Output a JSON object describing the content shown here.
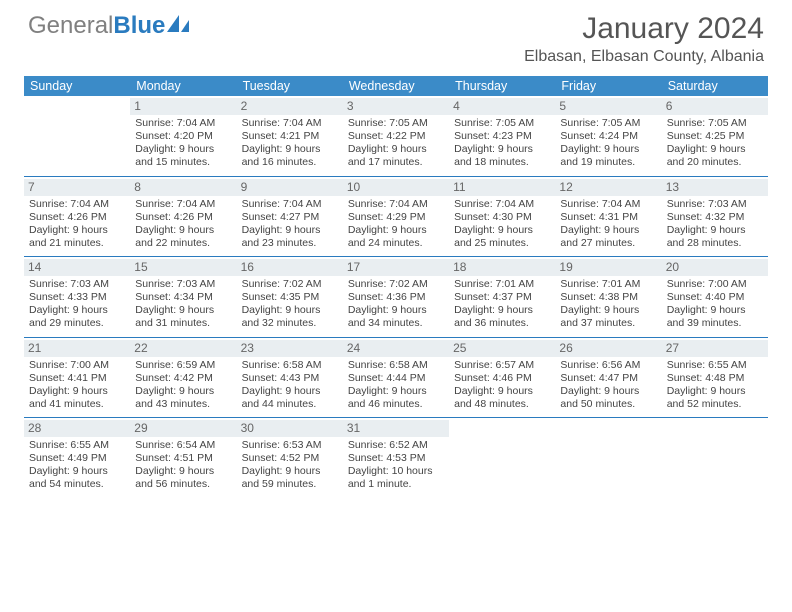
{
  "brand": {
    "part1": "General",
    "part2": "Blue"
  },
  "title": "January 2024",
  "location": "Elbasan, Elbasan County, Albania",
  "colors": {
    "header_bg": "#3b8bc8",
    "rule": "#2a7bbf",
    "daynum_bg": "#e9eef1"
  },
  "day_names": [
    "Sunday",
    "Monday",
    "Tuesday",
    "Wednesday",
    "Thursday",
    "Friday",
    "Saturday"
  ],
  "first_weekday": 1,
  "days": [
    {
      "n": 1,
      "sr": "7:04 AM",
      "ss": "4:20 PM",
      "dl": "9 hours and 15 minutes."
    },
    {
      "n": 2,
      "sr": "7:04 AM",
      "ss": "4:21 PM",
      "dl": "9 hours and 16 minutes."
    },
    {
      "n": 3,
      "sr": "7:05 AM",
      "ss": "4:22 PM",
      "dl": "9 hours and 17 minutes."
    },
    {
      "n": 4,
      "sr": "7:05 AM",
      "ss": "4:23 PM",
      "dl": "9 hours and 18 minutes."
    },
    {
      "n": 5,
      "sr": "7:05 AM",
      "ss": "4:24 PM",
      "dl": "9 hours and 19 minutes."
    },
    {
      "n": 6,
      "sr": "7:05 AM",
      "ss": "4:25 PM",
      "dl": "9 hours and 20 minutes."
    },
    {
      "n": 7,
      "sr": "7:04 AM",
      "ss": "4:26 PM",
      "dl": "9 hours and 21 minutes."
    },
    {
      "n": 8,
      "sr": "7:04 AM",
      "ss": "4:26 PM",
      "dl": "9 hours and 22 minutes."
    },
    {
      "n": 9,
      "sr": "7:04 AM",
      "ss": "4:27 PM",
      "dl": "9 hours and 23 minutes."
    },
    {
      "n": 10,
      "sr": "7:04 AM",
      "ss": "4:29 PM",
      "dl": "9 hours and 24 minutes."
    },
    {
      "n": 11,
      "sr": "7:04 AM",
      "ss": "4:30 PM",
      "dl": "9 hours and 25 minutes."
    },
    {
      "n": 12,
      "sr": "7:04 AM",
      "ss": "4:31 PM",
      "dl": "9 hours and 27 minutes."
    },
    {
      "n": 13,
      "sr": "7:03 AM",
      "ss": "4:32 PM",
      "dl": "9 hours and 28 minutes."
    },
    {
      "n": 14,
      "sr": "7:03 AM",
      "ss": "4:33 PM",
      "dl": "9 hours and 29 minutes."
    },
    {
      "n": 15,
      "sr": "7:03 AM",
      "ss": "4:34 PM",
      "dl": "9 hours and 31 minutes."
    },
    {
      "n": 16,
      "sr": "7:02 AM",
      "ss": "4:35 PM",
      "dl": "9 hours and 32 minutes."
    },
    {
      "n": 17,
      "sr": "7:02 AM",
      "ss": "4:36 PM",
      "dl": "9 hours and 34 minutes."
    },
    {
      "n": 18,
      "sr": "7:01 AM",
      "ss": "4:37 PM",
      "dl": "9 hours and 36 minutes."
    },
    {
      "n": 19,
      "sr": "7:01 AM",
      "ss": "4:38 PM",
      "dl": "9 hours and 37 minutes."
    },
    {
      "n": 20,
      "sr": "7:00 AM",
      "ss": "4:40 PM",
      "dl": "9 hours and 39 minutes."
    },
    {
      "n": 21,
      "sr": "7:00 AM",
      "ss": "4:41 PM",
      "dl": "9 hours and 41 minutes."
    },
    {
      "n": 22,
      "sr": "6:59 AM",
      "ss": "4:42 PM",
      "dl": "9 hours and 43 minutes."
    },
    {
      "n": 23,
      "sr": "6:58 AM",
      "ss": "4:43 PM",
      "dl": "9 hours and 44 minutes."
    },
    {
      "n": 24,
      "sr": "6:58 AM",
      "ss": "4:44 PM",
      "dl": "9 hours and 46 minutes."
    },
    {
      "n": 25,
      "sr": "6:57 AM",
      "ss": "4:46 PM",
      "dl": "9 hours and 48 minutes."
    },
    {
      "n": 26,
      "sr": "6:56 AM",
      "ss": "4:47 PM",
      "dl": "9 hours and 50 minutes."
    },
    {
      "n": 27,
      "sr": "6:55 AM",
      "ss": "4:48 PM",
      "dl": "9 hours and 52 minutes."
    },
    {
      "n": 28,
      "sr": "6:55 AM",
      "ss": "4:49 PM",
      "dl": "9 hours and 54 minutes."
    },
    {
      "n": 29,
      "sr": "6:54 AM",
      "ss": "4:51 PM",
      "dl": "9 hours and 56 minutes."
    },
    {
      "n": 30,
      "sr": "6:53 AM",
      "ss": "4:52 PM",
      "dl": "9 hours and 59 minutes."
    },
    {
      "n": 31,
      "sr": "6:52 AM",
      "ss": "4:53 PM",
      "dl": "10 hours and 1 minute."
    }
  ],
  "labels": {
    "sunrise": "Sunrise:",
    "sunset": "Sunset:",
    "daylight": "Daylight:"
  }
}
